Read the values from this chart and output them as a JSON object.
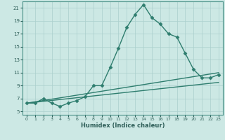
{
  "xlabel": "Humidex (Indice chaleur)",
  "background_color": "#cce8e4",
  "grid_color": "#aacfcc",
  "line_color": "#2e7d6e",
  "spine_color": "#4a9088",
  "tick_color": "#2e5e58",
  "xlim": [
    -0.5,
    23.5
  ],
  "ylim": [
    4.5,
    22
  ],
  "xticks": [
    0,
    1,
    2,
    3,
    4,
    5,
    6,
    7,
    8,
    9,
    10,
    11,
    12,
    13,
    14,
    15,
    16,
    17,
    18,
    19,
    20,
    21,
    22,
    23
  ],
  "yticks": [
    5,
    7,
    9,
    11,
    13,
    15,
    17,
    19,
    21
  ],
  "series": [
    {
      "x": [
        0,
        1,
        2,
        3,
        4,
        5,
        6,
        7,
        8,
        9,
        10,
        11,
        12,
        13,
        14,
        15,
        16,
        17,
        18,
        19,
        20,
        21,
        22,
        23
      ],
      "y": [
        6.3,
        6.3,
        7.0,
        6.3,
        5.8,
        6.3,
        6.7,
        7.3,
        9.0,
        9.0,
        11.8,
        14.8,
        18.0,
        20.0,
        21.5,
        19.5,
        18.5,
        17.0,
        16.5,
        14.0,
        11.5,
        10.2,
        10.2,
        10.7
      ],
      "marker": "D",
      "markersize": 2.5,
      "linewidth": 1.0,
      "linestyle": "-"
    },
    {
      "x": [
        0,
        23
      ],
      "y": [
        6.3,
        11.0
      ],
      "marker": null,
      "markersize": 0,
      "linewidth": 1.0,
      "linestyle": "-"
    },
    {
      "x": [
        0,
        23
      ],
      "y": [
        6.3,
        9.5
      ],
      "marker": null,
      "markersize": 0,
      "linewidth": 1.0,
      "linestyle": "-"
    }
  ]
}
